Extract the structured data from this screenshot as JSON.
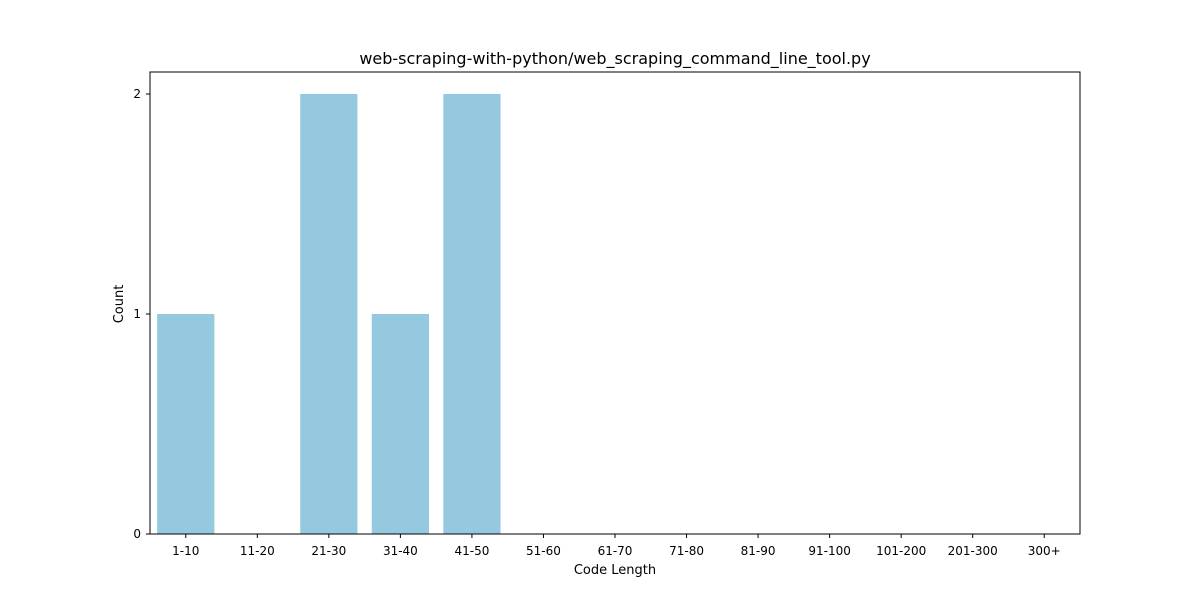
{
  "chart_data": {
    "type": "bar",
    "title": "web-scraping-with-python/web_scraping_command_line_tool.py",
    "xlabel": "Code Length",
    "ylabel": "Count",
    "categories": [
      "1-10",
      "11-20",
      "21-30",
      "31-40",
      "41-50",
      "51-60",
      "61-70",
      "71-80",
      "81-90",
      "91-100",
      "101-200",
      "201-300",
      "300+"
    ],
    "values": [
      1,
      0,
      2,
      1,
      2,
      0,
      0,
      0,
      0,
      0,
      0,
      0,
      0
    ],
    "yticks": [
      0,
      1,
      2
    ],
    "ylim": [
      0,
      2.1
    ],
    "grid": false,
    "bar_color": "#95c9df"
  }
}
